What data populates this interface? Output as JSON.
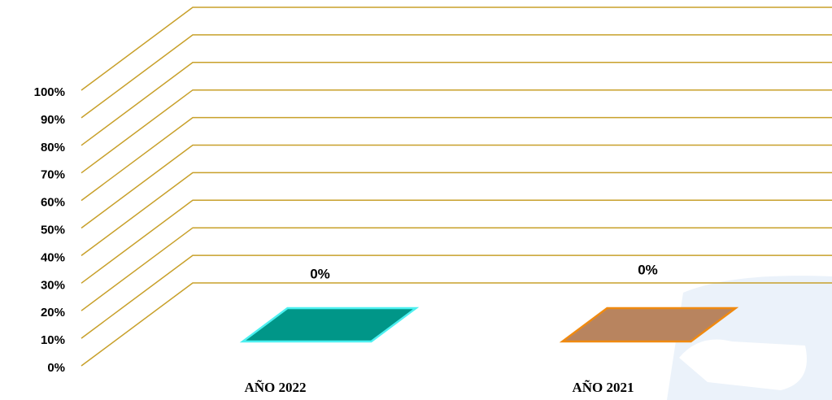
{
  "chart_data": {
    "type": "bar3d",
    "categories": [
      "AÑO 2022",
      "AÑO 2021"
    ],
    "values": [
      0,
      0
    ],
    "value_labels": [
      "0%",
      "0%"
    ],
    "colors": [
      "#009688",
      "#b8845f"
    ],
    "edge_colors": [
      "#4df0f0",
      "#f08a10"
    ],
    "grid_color": "#c8a02a",
    "ylim": [
      0,
      100
    ],
    "yticks": [
      {
        "value": 0,
        "label": "0%"
      },
      {
        "value": 10,
        "label": "10%"
      },
      {
        "value": 20,
        "label": "20%"
      },
      {
        "value": 30,
        "label": "30%"
      },
      {
        "value": 40,
        "label": "40%"
      },
      {
        "value": 50,
        "label": "50%"
      },
      {
        "value": 60,
        "label": "60%"
      },
      {
        "value": 70,
        "label": "70%"
      },
      {
        "value": 80,
        "label": "80%"
      },
      {
        "value": 90,
        "label": "90%"
      },
      {
        "value": 100,
        "label": "100%"
      }
    ],
    "grid": true
  }
}
